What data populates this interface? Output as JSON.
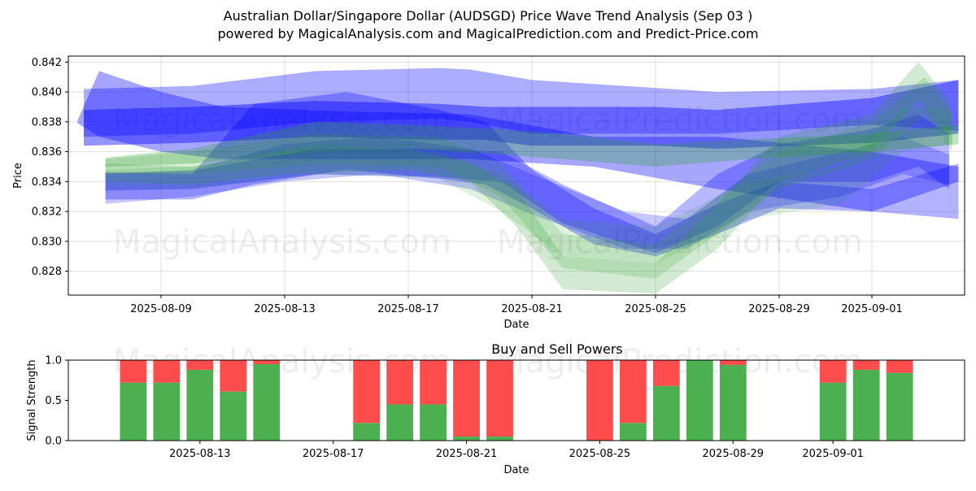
{
  "title_line1": "Australian Dollar/Singapore Dollar (AUDSGD) Price Wave Trend Analysis (Sep 03 )",
  "title_line2": "powered by MagicalAnalysis.com and MagicalPrediction.com and Predict-Price.com",
  "watermarks": [
    "MagicalAnalysis.com",
    "MagicalPrediction.com"
  ],
  "colors": {
    "blue": "#0000ff",
    "green": "#2ca02c",
    "buy": "#4caf50",
    "sell": "#ff4c4c"
  },
  "chart_data": [
    {
      "type": "area",
      "xlabel": "Date",
      "ylabel": "Price",
      "x_range": [
        "2025-08-06",
        "2025-09-04"
      ],
      "ylim": [
        0.8264,
        0.8424
      ],
      "x_ticks": [
        "2025-08-09",
        "2025-08-13",
        "2025-08-17",
        "2025-08-21",
        "2025-08-25",
        "2025-08-29",
        "2025-09-01"
      ],
      "y_ticks": [
        0.828,
        0.83,
        0.832,
        0.834,
        0.836,
        0.838,
        0.84,
        0.842
      ],
      "grid": true,
      "series": [
        {
          "color": "blue",
          "opacity": 0.32,
          "points": [
            [
              "2025-08-06.5",
              0.837,
              0.8402
            ],
            [
              "2025-08-10",
              0.8372,
              0.8404
            ],
            [
              "2025-08-14",
              0.838,
              0.8414
            ],
            [
              "2025-08-18",
              0.8382,
              0.8416
            ],
            [
              "2025-08-19",
              0.838,
              0.8415
            ],
            [
              "2025-08-21",
              0.8372,
              0.8408
            ],
            [
              "2025-08-24",
              0.8372,
              0.8404
            ],
            [
              "2025-08-27",
              0.8372,
              0.84
            ],
            [
              "2025-09-01",
              0.8378,
              0.8402
            ],
            [
              "2025-09-03.8",
              0.8374,
              0.8408
            ]
          ]
        },
        {
          "color": "blue",
          "opacity": 0.42,
          "points": [
            [
              "2025-08-06.5",
              0.8364,
              0.8388
            ],
            [
              "2025-08-10",
              0.8366,
              0.839
            ],
            [
              "2025-08-14",
              0.837,
              0.8394
            ],
            [
              "2025-08-18",
              0.8368,
              0.8392
            ],
            [
              "2025-08-19.5",
              0.8368,
              0.839
            ],
            [
              "2025-08-21",
              0.8364,
              0.839
            ],
            [
              "2025-08-25",
              0.8364,
              0.839
            ],
            [
              "2025-08-27",
              0.8362,
              0.8388
            ],
            [
              "2025-09-01",
              0.8366,
              0.8396
            ],
            [
              "2025-09-03.8",
              0.8372,
              0.8408
            ]
          ]
        },
        {
          "color": "blue",
          "opacity": 0.35,
          "points": [
            [
              "2025-08-06.3",
              0.8379,
              0.8381
            ],
            [
              "2025-08-07",
              0.837,
              0.8414
            ],
            [
              "2025-08-09",
              0.836,
              0.84
            ],
            [
              "2025-08-11",
              0.8355,
              0.839
            ],
            [
              "2025-08-15",
              0.8355,
              0.8387
            ],
            [
              "2025-08-19",
              0.8355,
              0.8385
            ],
            [
              "2025-08-23",
              0.835,
              0.837
            ],
            [
              "2025-08-27",
              0.8335,
              0.837
            ],
            [
              "2025-09-01",
              0.832,
              0.836
            ],
            [
              "2025-09-03.8",
              0.834,
              0.835
            ]
          ]
        },
        {
          "color": "blue",
          "opacity": 0.3,
          "points": [
            [
              "2025-08-07.2",
              0.8328,
              0.8346
            ],
            [
              "2025-08-10",
              0.8328,
              0.8345
            ],
            [
              "2025-08-12",
              0.8338,
              0.8392
            ],
            [
              "2025-08-15",
              0.8348,
              0.84
            ],
            [
              "2025-08-18",
              0.8342,
              0.8388
            ],
            [
              "2025-08-19.5",
              0.8338,
              0.838
            ],
            [
              "2025-08-21",
              0.8322,
              0.8348
            ],
            [
              "2025-08-23",
              0.8298,
              0.8322
            ],
            [
              "2025-08-25",
              0.829,
              0.8305
            ],
            [
              "2025-08-27",
              0.8305,
              0.8325
            ],
            [
              "2025-08-29",
              0.8322,
              0.834
            ],
            [
              "2025-09-01",
              0.832,
              0.8335
            ],
            [
              "2025-09-03.8",
              0.8315,
              0.8352
            ]
          ]
        },
        {
          "color": "blue",
          "opacity": 0.28,
          "points": [
            [
              "2025-08-07.2",
              0.8334,
              0.8346
            ],
            [
              "2025-08-10",
              0.8335,
              0.8347
            ],
            [
              "2025-08-14",
              0.8345,
              0.8362
            ],
            [
              "2025-08-18",
              0.8343,
              0.8362
            ],
            [
              "2025-08-20",
              0.834,
              0.836
            ],
            [
              "2025-08-22",
              0.8312,
              0.8338
            ],
            [
              "2025-08-25",
              0.8292,
              0.831
            ],
            [
              "2025-08-27",
              0.831,
              0.8345
            ],
            [
              "2025-08-29",
              0.834,
              0.8365
            ],
            [
              "2025-09-01",
              0.834,
              0.8375
            ],
            [
              "2025-09-02.5",
              0.835,
              0.8385
            ],
            [
              "2025-09-03.5",
              0.8335,
              0.8372
            ]
          ]
        },
        {
          "color": "blue",
          "opacity": 0.22,
          "points": [
            [
              "2025-08-07.2",
              0.8325,
              0.8345
            ],
            [
              "2025-08-10",
              0.833,
              0.8348
            ],
            [
              "2025-08-13",
              0.834,
              0.8365
            ],
            [
              "2025-08-16",
              0.8345,
              0.837
            ],
            [
              "2025-08-19",
              0.8335,
              0.8362
            ],
            [
              "2025-08-21",
              0.8318,
              0.8345
            ],
            [
              "2025-08-24",
              0.8295,
              0.832
            ],
            [
              "2025-08-26",
              0.8295,
              0.8315
            ],
            [
              "2025-08-28",
              0.832,
              0.8345
            ],
            [
              "2025-08-31",
              0.833,
              0.836
            ],
            [
              "2025-09-02",
              0.8345,
              0.837
            ],
            [
              "2025-09-03.5",
              0.8338,
              0.8358
            ]
          ]
        },
        {
          "color": "green",
          "opacity": 0.3,
          "points": [
            [
              "2025-08-07.2",
              0.835,
              0.8356
            ],
            [
              "2025-08-10",
              0.8352,
              0.8362
            ],
            [
              "2025-08-14",
              0.836,
              0.838
            ],
            [
              "2025-08-17",
              0.8362,
              0.8378
            ],
            [
              "2025-08-20",
              0.8358,
              0.8375
            ],
            [
              "2025-08-22",
              0.8355,
              0.8372
            ],
            [
              "2025-08-25",
              0.835,
              0.8365
            ],
            [
              "2025-08-28",
              0.8355,
              0.8368
            ],
            [
              "2025-09-01",
              0.836,
              0.8372
            ],
            [
              "2025-09-03.8",
              0.8365,
              0.8378
            ]
          ]
        },
        {
          "color": "green",
          "opacity": 0.22,
          "points": [
            [
              "2025-08-07.2",
              0.834,
              0.8352
            ],
            [
              "2025-08-10",
              0.8338,
              0.835
            ],
            [
              "2025-08-13",
              0.8345,
              0.836
            ],
            [
              "2025-08-17",
              0.8348,
              0.8362
            ],
            [
              "2025-08-19",
              0.834,
              0.8352
            ],
            [
              "2025-08-20.5",
              0.831,
              0.8335
            ],
            [
              "2025-08-22",
              0.8268,
              0.829
            ],
            [
              "2025-08-25",
              0.8265,
              0.8285
            ],
            [
              "2025-08-27",
              0.8295,
              0.8325
            ],
            [
              "2025-08-29",
              0.834,
              0.837
            ],
            [
              "2025-09-01",
              0.836,
              0.8385
            ],
            [
              "2025-09-02.5",
              0.8395,
              0.842
            ],
            [
              "2025-09-03.5",
              0.837,
              0.8395
            ]
          ]
        },
        {
          "color": "green",
          "opacity": 0.18,
          "points": [
            [
              "2025-08-07.2",
              0.8345,
              0.8355
            ],
            [
              "2025-08-10",
              0.8345,
              0.836
            ],
            [
              "2025-08-14",
              0.8352,
              0.8372
            ],
            [
              "2025-08-18",
              0.835,
              0.837
            ],
            [
              "2025-08-20",
              0.833,
              0.8352
            ],
            [
              "2025-08-22",
              0.8282,
              0.8305
            ],
            [
              "2025-08-25",
              0.8275,
              0.8298
            ],
            [
              "2025-08-27",
              0.8305,
              0.833
            ],
            [
              "2025-08-29",
              0.8335,
              0.836
            ],
            [
              "2025-09-01",
              0.8355,
              0.838
            ],
            [
              "2025-09-02.7",
              0.8385,
              0.841
            ],
            [
              "2025-09-03.6",
              0.836,
              0.8385
            ]
          ]
        },
        {
          "color": "green",
          "opacity": 0.15,
          "points": [
            [
              "2025-08-07.2",
              0.8335,
              0.8348
            ],
            [
              "2025-08-10",
              0.8335,
              0.835
            ],
            [
              "2025-08-14",
              0.8345,
              0.8365
            ],
            [
              "2025-08-18",
              0.8342,
              0.836
            ],
            [
              "2025-08-20",
              0.832,
              0.8345
            ],
            [
              "2025-08-22",
              0.829,
              0.8315
            ],
            [
              "2025-08-25",
              0.8285,
              0.831
            ],
            [
              "2025-08-28",
              0.8315,
              0.834
            ],
            [
              "2025-08-31",
              0.8325,
              0.835
            ],
            [
              "2025-09-02",
              0.836,
              0.839
            ],
            [
              "2025-09-03.6",
              0.8365,
              0.8388
            ]
          ]
        }
      ]
    },
    {
      "type": "bar",
      "title": "Buy and Sell Powers",
      "xlabel": "Date",
      "ylabel": "Signal Strength",
      "ylim": [
        0,
        1
      ],
      "y_ticks": [
        "0.0",
        "0.5",
        "1.0"
      ],
      "x_ticks": [
        "2025-08-13",
        "2025-08-17",
        "2025-08-21",
        "2025-08-25",
        "2025-08-29",
        "2025-09-01"
      ],
      "series_names": [
        "buy",
        "sell"
      ],
      "bars": [
        {
          "date": "2025-08-11",
          "buy": 0.72
        },
        {
          "date": "2025-08-12",
          "buy": 0.72
        },
        {
          "date": "2025-08-13",
          "buy": 0.88
        },
        {
          "date": "2025-08-14",
          "buy": 0.61
        },
        {
          "date": "2025-08-15",
          "buy": 0.95
        },
        {
          "date": "2025-08-18",
          "buy": 0.22
        },
        {
          "date": "2025-08-19",
          "buy": 0.45
        },
        {
          "date": "2025-08-20",
          "buy": 0.45
        },
        {
          "date": "2025-08-21",
          "buy": 0.05
        },
        {
          "date": "2025-08-22",
          "buy": 0.05
        },
        {
          "date": "2025-08-25",
          "buy": 0.0
        },
        {
          "date": "2025-08-26",
          "buy": 0.22
        },
        {
          "date": "2025-08-27",
          "buy": 0.68
        },
        {
          "date": "2025-08-28",
          "buy": 1.0
        },
        {
          "date": "2025-08-29",
          "buy": 0.94
        },
        {
          "date": "2025-09-01",
          "buy": 0.72
        },
        {
          "date": "2025-09-02",
          "buy": 0.88
        },
        {
          "date": "2025-09-03",
          "buy": 0.84
        }
      ]
    }
  ]
}
